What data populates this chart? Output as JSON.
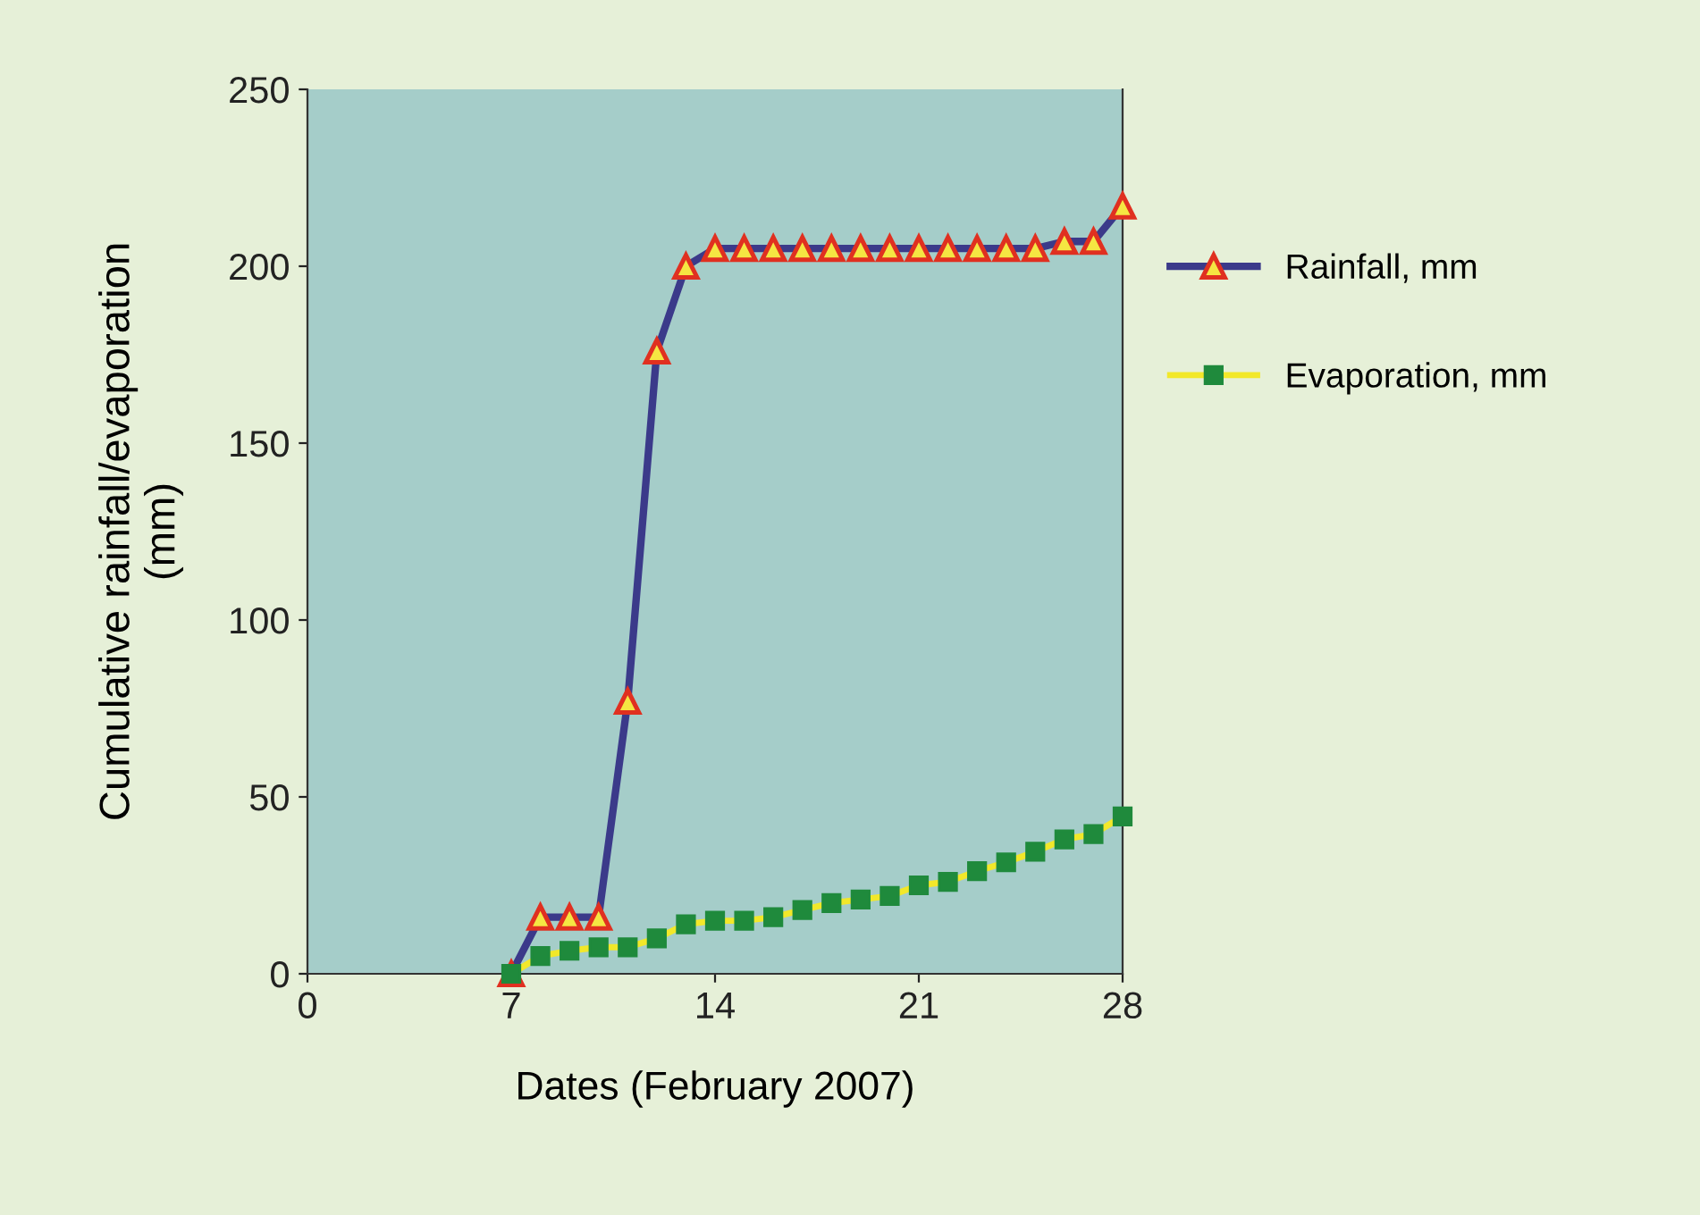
{
  "chart_data": {
    "type": "line",
    "xlabel": "Dates (February 2007)",
    "ylabel": "Cumulative rainfall/evaporation\n(mm)",
    "x": [
      7,
      8,
      9,
      10,
      11,
      12,
      13,
      14,
      15,
      16,
      17,
      18,
      19,
      20,
      21,
      22,
      23,
      24,
      25,
      26,
      27,
      28
    ],
    "series": [
      {
        "name": "Rainfall, mm",
        "color": "#3b3a8a",
        "marker": "triangle",
        "values": [
          0,
          16,
          16,
          16,
          77,
          176,
          200,
          205,
          205,
          205,
          205,
          205,
          205,
          205,
          205,
          205,
          205,
          205,
          205,
          207,
          207,
          217
        ]
      },
      {
        "name": "Evaporation, mm",
        "color": "#f2e82a",
        "marker": "square",
        "values": [
          0,
          5,
          6.5,
          7.5,
          7.5,
          10,
          14,
          15,
          15,
          16,
          18,
          20,
          21,
          22,
          25,
          26,
          29,
          31.5,
          34.5,
          38,
          39.5,
          44.5
        ]
      }
    ],
    "xlim": [
      0,
      28
    ],
    "xticks": [
      0,
      7,
      14,
      21,
      28
    ],
    "ylim": [
      0,
      250
    ],
    "yticks": [
      0,
      50,
      100,
      150,
      200,
      250
    ],
    "grid": false,
    "legend": "right",
    "line_style": "solid"
  }
}
